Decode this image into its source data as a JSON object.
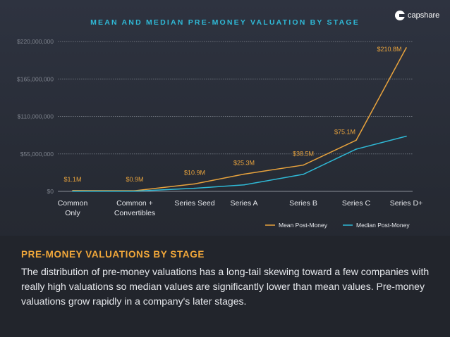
{
  "brand": {
    "name": "capshare"
  },
  "chart_data": {
    "type": "line",
    "title": "MEAN AND MEDIAN PRE-MONEY VALUATION BY STAGE",
    "categories": [
      [
        "Common",
        "Only"
      ],
      [
        "Common +",
        "Convertibles"
      ],
      [
        "Series Seed"
      ],
      [
        "Series A"
      ],
      [
        "Series B"
      ],
      [
        "Series C"
      ],
      [
        "Series D+"
      ]
    ],
    "y_ticks": [
      {
        "value": 0,
        "label": "$0"
      },
      {
        "value": 55000000,
        "label": "$55,000,000"
      },
      {
        "value": 110000000,
        "label": "$110,000,000"
      },
      {
        "value": 165000000,
        "label": "$165,000,000"
      },
      {
        "value": 220000000,
        "label": "$220,000,000"
      }
    ],
    "ylim": [
      0,
      220000000
    ],
    "series": [
      {
        "name": "Mean Post-Money",
        "color": "#e8a33d",
        "values": [
          1100000,
          900000,
          10900000,
          25300000,
          38500000,
          75100000,
          210800000
        ],
        "labels": [
          "$1.1M",
          "$0.9M",
          "$10.9M",
          "$25.3M",
          "$38.5M",
          "$75.1M",
          "$210.8M"
        ]
      },
      {
        "name": "Median Post-Money",
        "color": "#2fb9d6",
        "values": [
          200000,
          300000,
          4500000,
          9500000,
          25000000,
          62000000,
          81000000
        ]
      }
    ],
    "grid": true,
    "legend": "bottom-right"
  },
  "footer": {
    "heading": "PRE-MONEY VALUATIONS BY STAGE",
    "body": "The distribution of pre-money valuations has a long-tail skewing toward a few companies with really high valuations so median values are significantly lower than mean values.  Pre-money valuations grow rapidly in a company's later stages."
  }
}
